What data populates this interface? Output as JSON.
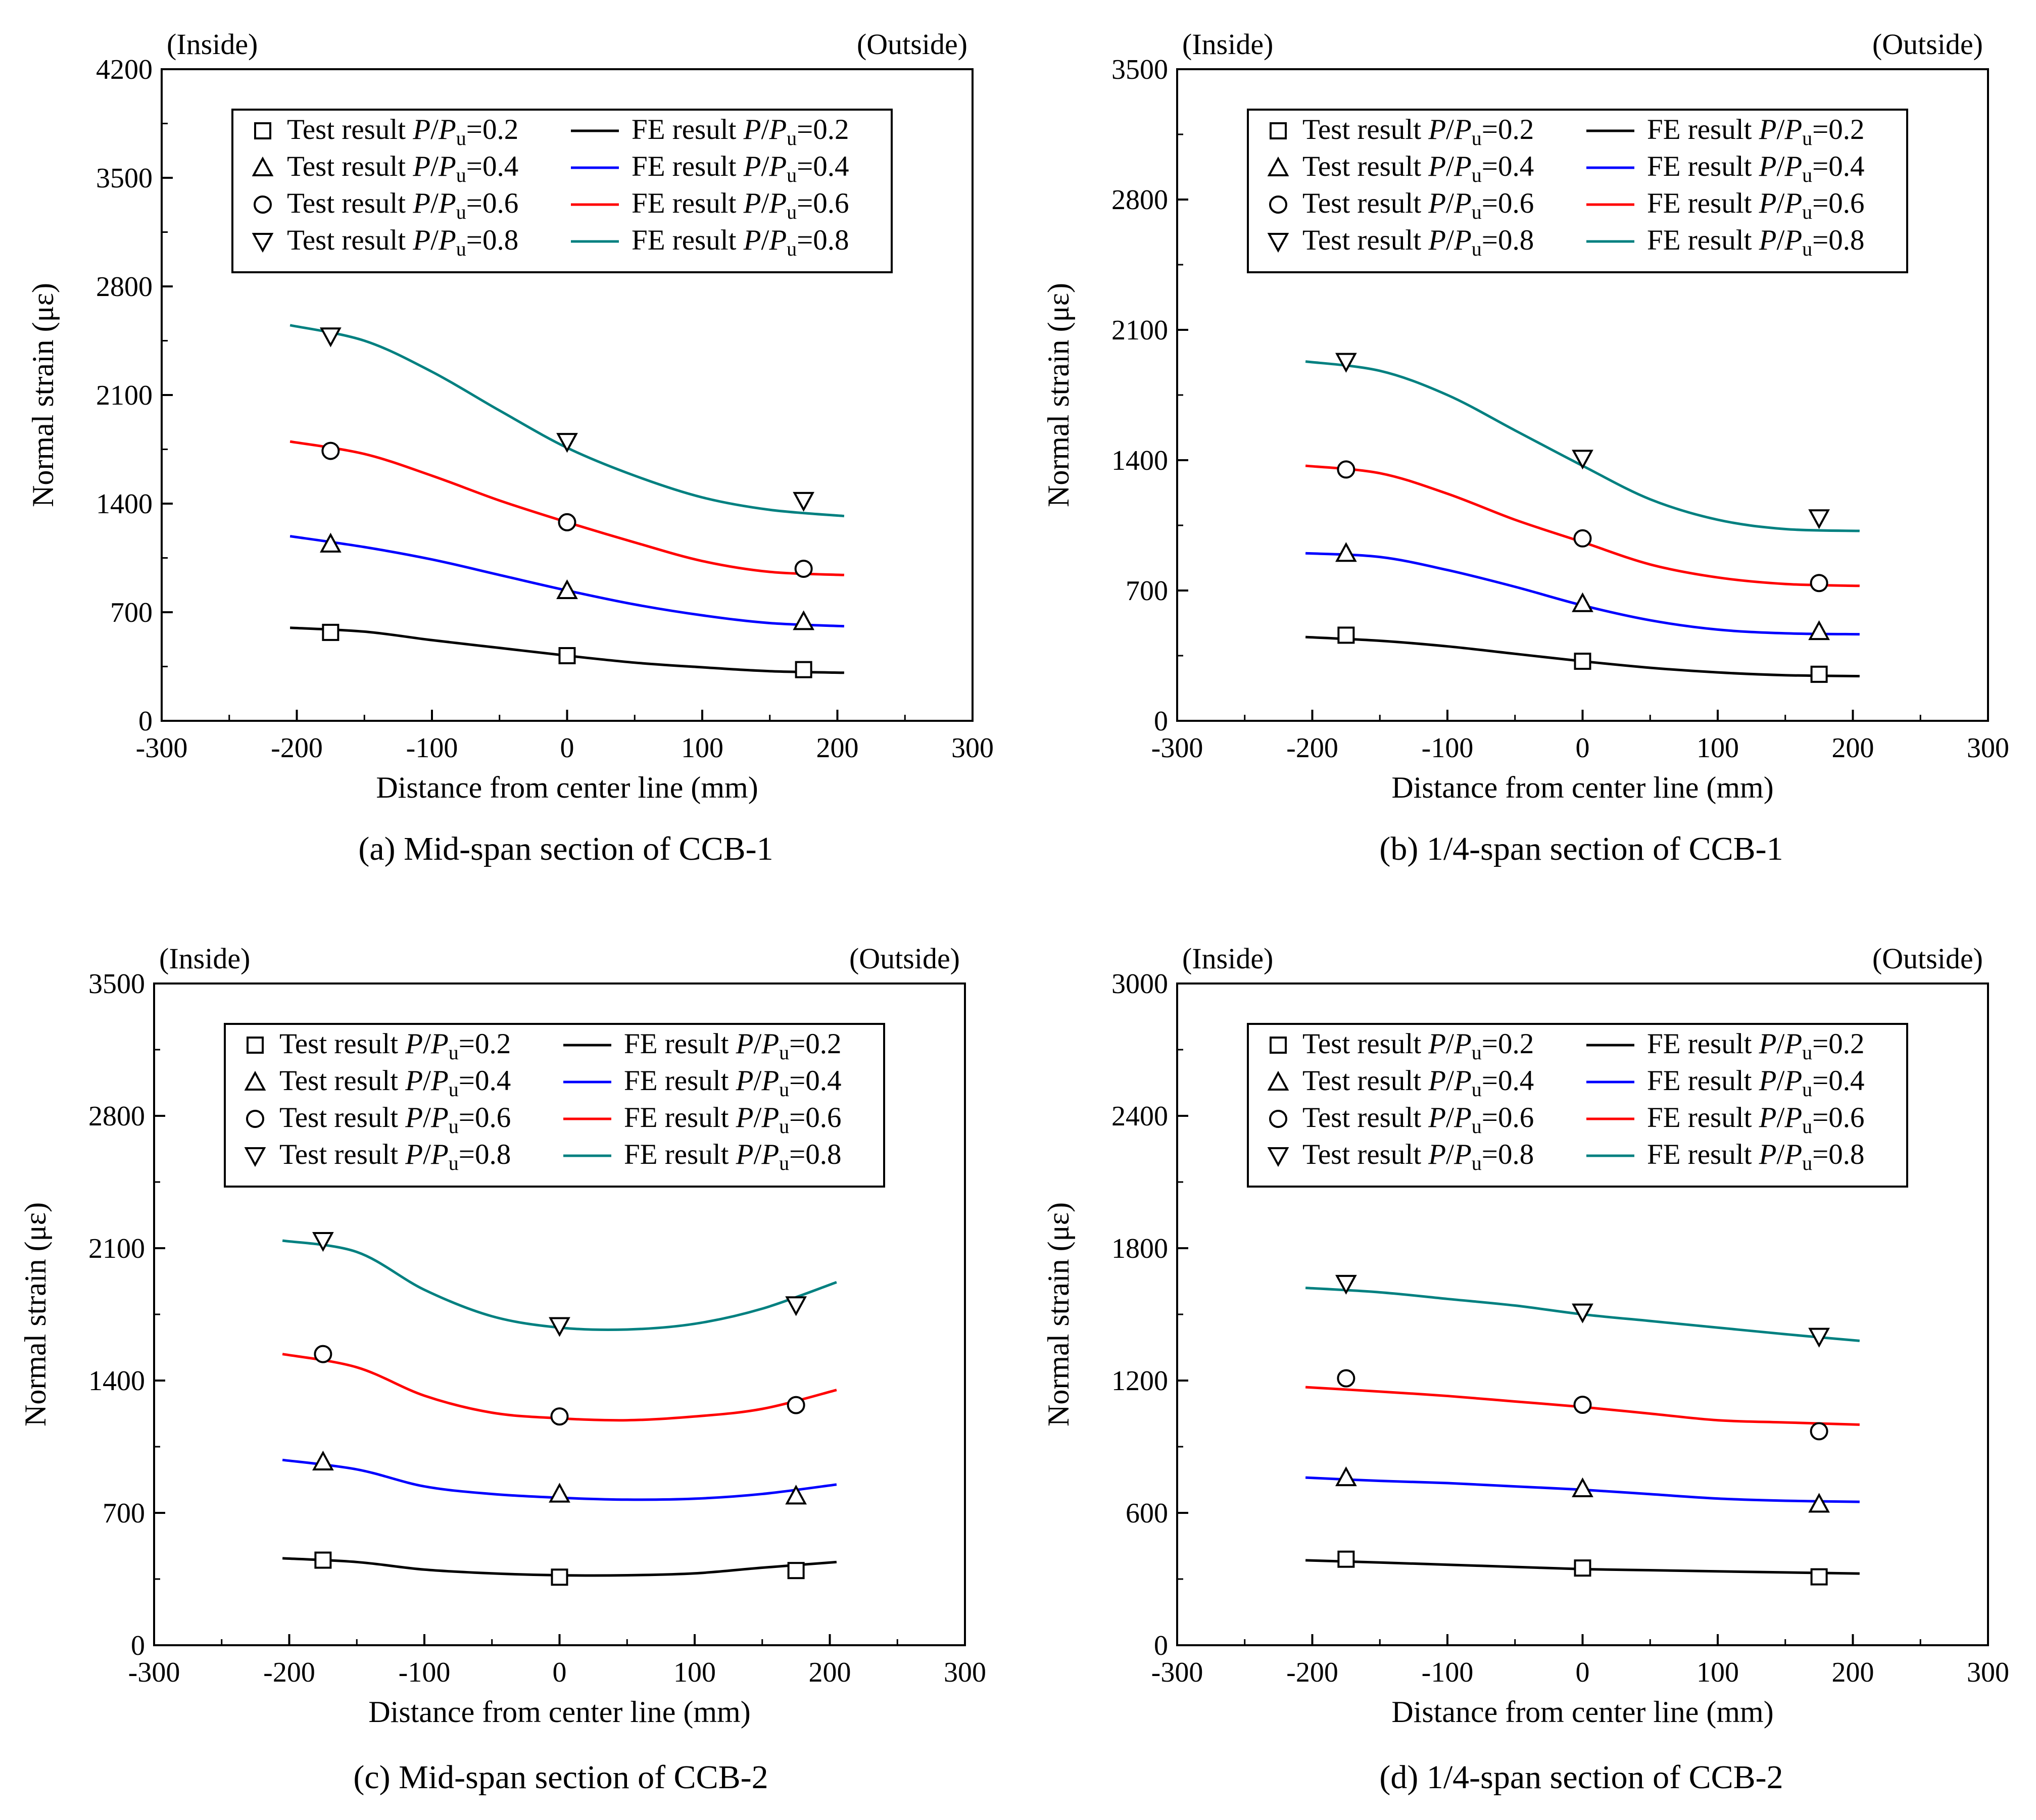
{
  "chart_data": [
    {
      "type": "line",
      "caption": "(a) Mid-span section of CCB-1",
      "xlabel": "Distance from center line (mm)",
      "ylabel": "Normal strain (με)",
      "side_labels": {
        "left": "(Inside)",
        "right": "(Outside)"
      },
      "xlim": [
        -300,
        300
      ],
      "ylim": [
        0,
        4200
      ],
      "xticks": [
        -300,
        -200,
        -100,
        0,
        100,
        200,
        300
      ],
      "yticks": [
        0,
        700,
        1400,
        2100,
        2800,
        3500,
        4200
      ],
      "legend_position": "top",
      "test_series": [
        {
          "name": "Test result P/Pu=0.2",
          "ratio": "0.2",
          "marker": "square",
          "x": [
            -175,
            0,
            175
          ],
          "y": [
            570,
            420,
            330
          ]
        },
        {
          "name": "Test result P/Pu=0.4",
          "ratio": "0.4",
          "marker": "triangle-up",
          "x": [
            -175,
            0,
            175
          ],
          "y": [
            1140,
            840,
            640
          ]
        },
        {
          "name": "Test result P/Pu=0.6",
          "ratio": "0.6",
          "marker": "circle",
          "x": [
            -175,
            0,
            175
          ],
          "y": [
            1740,
            1280,
            980
          ]
        },
        {
          "name": "Test result P/Pu=0.8",
          "ratio": "0.8",
          "marker": "triangle-down",
          "x": [
            -175,
            0,
            175
          ],
          "y": [
            2480,
            1800,
            1420
          ]
        }
      ],
      "fe_series": [
        {
          "name": "FE result P/Pu=0.2",
          "ratio": "0.2",
          "color": "#000000",
          "x": [
            -205,
            -150,
            -100,
            -50,
            0,
            50,
            100,
            150,
            205
          ],
          "y": [
            600,
            575,
            520,
            470,
            420,
            375,
            345,
            320,
            310
          ]
        },
        {
          "name": "FE result P/Pu=0.4",
          "ratio": "0.4",
          "color": "#0000ff",
          "x": [
            -205,
            -150,
            -100,
            -50,
            0,
            50,
            100,
            150,
            205
          ],
          "y": [
            1190,
            1120,
            1040,
            940,
            840,
            750,
            680,
            630,
            610
          ]
        },
        {
          "name": "FE result P/Pu=0.6",
          "ratio": "0.6",
          "color": "#ff0000",
          "x": [
            -205,
            -150,
            -100,
            -50,
            0,
            50,
            100,
            150,
            205
          ],
          "y": [
            1800,
            1720,
            1580,
            1420,
            1280,
            1150,
            1030,
            960,
            940
          ]
        },
        {
          "name": "FE result P/Pu=0.8",
          "ratio": "0.8",
          "color": "#008080",
          "x": [
            -205,
            -150,
            -100,
            -50,
            0,
            50,
            100,
            150,
            205
          ],
          "y": [
            2550,
            2450,
            2250,
            2000,
            1760,
            1580,
            1440,
            1360,
            1320
          ]
        }
      ]
    },
    {
      "type": "line",
      "caption": "(b) 1/4-span section of CCB-1",
      "xlabel": "Distance from center line (mm)",
      "ylabel": "Normal strain (με)",
      "side_labels": {
        "left": "(Inside)",
        "right": "(Outside)"
      },
      "xlim": [
        -300,
        300
      ],
      "ylim": [
        0,
        3500
      ],
      "xticks": [
        -300,
        -200,
        -100,
        0,
        100,
        200,
        300
      ],
      "yticks": [
        0,
        700,
        1400,
        2100,
        2800,
        3500
      ],
      "legend_position": "top",
      "test_series": [
        {
          "name": "Test result P/Pu=0.2",
          "ratio": "0.2",
          "marker": "square",
          "x": [
            -175,
            0,
            175
          ],
          "y": [
            460,
            320,
            250
          ]
        },
        {
          "name": "Test result P/Pu=0.4",
          "ratio": "0.4",
          "marker": "triangle-up",
          "x": [
            -175,
            0,
            175
          ],
          "y": [
            900,
            630,
            480
          ]
        },
        {
          "name": "Test result P/Pu=0.6",
          "ratio": "0.6",
          "marker": "circle",
          "x": [
            -175,
            0,
            175
          ],
          "y": [
            1350,
            980,
            740
          ]
        },
        {
          "name": "Test result P/Pu=0.8",
          "ratio": "0.8",
          "marker": "triangle-down",
          "x": [
            -175,
            0,
            175
          ],
          "y": [
            1930,
            1410,
            1090
          ]
        }
      ],
      "fe_series": [
        {
          "name": "FE result P/Pu=0.2",
          "ratio": "0.2",
          "color": "#000000",
          "x": [
            -205,
            -150,
            -100,
            -50,
            0,
            50,
            100,
            150,
            205
          ],
          "y": [
            450,
            430,
            400,
            360,
            320,
            285,
            260,
            245,
            240
          ]
        },
        {
          "name": "FE result P/Pu=0.4",
          "ratio": "0.4",
          "color": "#0000ff",
          "x": [
            -205,
            -150,
            -100,
            -50,
            0,
            50,
            100,
            150,
            205
          ],
          "y": [
            900,
            880,
            810,
            720,
            620,
            540,
            490,
            470,
            465
          ]
        },
        {
          "name": "FE result P/Pu=0.6",
          "ratio": "0.6",
          "color": "#ff0000",
          "x": [
            -205,
            -150,
            -100,
            -50,
            0,
            50,
            100,
            150,
            205
          ],
          "y": [
            1370,
            1330,
            1220,
            1080,
            960,
            840,
            770,
            735,
            725
          ]
        },
        {
          "name": "FE result P/Pu=0.8",
          "ratio": "0.8",
          "color": "#008080",
          "x": [
            -205,
            -150,
            -100,
            -50,
            0,
            50,
            100,
            150,
            205
          ],
          "y": [
            1930,
            1880,
            1750,
            1560,
            1370,
            1190,
            1080,
            1030,
            1020
          ]
        }
      ]
    },
    {
      "type": "line",
      "caption": "(c) Mid-span section of CCB-2",
      "xlabel": "Distance from center line (mm)",
      "ylabel": "Normal strain (με)",
      "side_labels": {
        "left": "(Inside)",
        "right": "(Outside)"
      },
      "xlim": [
        -300,
        300
      ],
      "ylim": [
        0,
        3500
      ],
      "xticks": [
        -300,
        -200,
        -100,
        0,
        100,
        200,
        300
      ],
      "yticks": [
        0,
        700,
        1400,
        2100,
        2800,
        3500
      ],
      "legend_position": "top",
      "test_series": [
        {
          "name": "Test result P/Pu=0.2",
          "ratio": "0.2",
          "marker": "square",
          "x": [
            -175,
            0,
            175
          ],
          "y": [
            450,
            360,
            395
          ]
        },
        {
          "name": "Test result P/Pu=0.4",
          "ratio": "0.4",
          "marker": "triangle-up",
          "x": [
            -175,
            0,
            175
          ],
          "y": [
            970,
            800,
            790
          ]
        },
        {
          "name": "Test result P/Pu=0.6",
          "ratio": "0.6",
          "marker": "circle",
          "x": [
            -175,
            0,
            175
          ],
          "y": [
            1540,
            1210,
            1270
          ]
        },
        {
          "name": "Test result P/Pu=0.8",
          "ratio": "0.8",
          "marker": "triangle-down",
          "x": [
            -175,
            0,
            175
          ],
          "y": [
            2140,
            1690,
            1800
          ]
        }
      ],
      "fe_series": [
        {
          "name": "FE result P/Pu=0.2",
          "ratio": "0.2",
          "color": "#000000",
          "x": [
            -205,
            -150,
            -100,
            -50,
            0,
            50,
            100,
            150,
            205
          ],
          "y": [
            460,
            440,
            400,
            380,
            370,
            370,
            380,
            410,
            440
          ]
        },
        {
          "name": "FE result P/Pu=0.4",
          "ratio": "0.4",
          "color": "#0000ff",
          "x": [
            -205,
            -150,
            -100,
            -50,
            0,
            50,
            100,
            150,
            205
          ],
          "y": [
            980,
            930,
            840,
            800,
            780,
            770,
            775,
            800,
            850
          ]
        },
        {
          "name": "FE result P/Pu=0.6",
          "ratio": "0.6",
          "color": "#ff0000",
          "x": [
            -205,
            -150,
            -100,
            -50,
            0,
            50,
            100,
            150,
            205
          ],
          "y": [
            1540,
            1470,
            1320,
            1230,
            1200,
            1190,
            1210,
            1250,
            1350
          ]
        },
        {
          "name": "FE result P/Pu=0.8",
          "ratio": "0.8",
          "color": "#008080",
          "x": [
            -205,
            -150,
            -100,
            -50,
            0,
            50,
            100,
            150,
            205
          ],
          "y": [
            2140,
            2080,
            1880,
            1740,
            1680,
            1670,
            1700,
            1780,
            1920
          ]
        }
      ]
    },
    {
      "type": "line",
      "caption": "(d) 1/4-span section of CCB-2",
      "xlabel": "Distance from center line (mm)",
      "ylabel": "Normal strain (με)",
      "side_labels": {
        "left": "(Inside)",
        "right": "(Outside)"
      },
      "xlim": [
        -300,
        300
      ],
      "ylim": [
        0,
        3000
      ],
      "xticks": [
        -300,
        -200,
        -100,
        0,
        100,
        200,
        300
      ],
      "yticks": [
        0,
        600,
        1200,
        1800,
        2400,
        3000
      ],
      "legend_position": "top",
      "test_series": [
        {
          "name": "Test result P/Pu=0.2",
          "ratio": "0.2",
          "marker": "square",
          "x": [
            -175,
            0,
            175
          ],
          "y": [
            390,
            350,
            310
          ]
        },
        {
          "name": "Test result P/Pu=0.4",
          "ratio": "0.4",
          "marker": "triangle-up",
          "x": [
            -175,
            0,
            175
          ],
          "y": [
            760,
            710,
            640
          ]
        },
        {
          "name": "Test result P/Pu=0.6",
          "ratio": "0.6",
          "marker": "circle",
          "x": [
            -175,
            0,
            175
          ],
          "y": [
            1210,
            1090,
            970
          ]
        },
        {
          "name": "Test result P/Pu=0.8",
          "ratio": "0.8",
          "marker": "triangle-down",
          "x": [
            -175,
            0,
            175
          ],
          "y": [
            1640,
            1510,
            1400
          ]
        }
      ],
      "fe_series": [
        {
          "name": "FE result P/Pu=0.2",
          "ratio": "0.2",
          "color": "#000000",
          "x": [
            -205,
            -150,
            -100,
            -50,
            0,
            50,
            100,
            150,
            205
          ],
          "y": [
            385,
            375,
            365,
            355,
            345,
            340,
            335,
            330,
            325
          ]
        },
        {
          "name": "FE result P/Pu=0.4",
          "ratio": "0.4",
          "color": "#0000ff",
          "x": [
            -205,
            -150,
            -100,
            -50,
            0,
            50,
            100,
            150,
            205
          ],
          "y": [
            760,
            745,
            735,
            720,
            705,
            685,
            665,
            655,
            650
          ]
        },
        {
          "name": "FE result P/Pu=0.6",
          "ratio": "0.6",
          "color": "#ff0000",
          "x": [
            -205,
            -150,
            -100,
            -50,
            0,
            50,
            100,
            150,
            205
          ],
          "y": [
            1170,
            1150,
            1130,
            1105,
            1080,
            1050,
            1020,
            1010,
            1000
          ]
        },
        {
          "name": "FE result P/Pu=0.8",
          "ratio": "0.8",
          "color": "#008080",
          "x": [
            -205,
            -150,
            -100,
            -50,
            0,
            50,
            100,
            150,
            205
          ],
          "y": [
            1620,
            1600,
            1570,
            1540,
            1500,
            1470,
            1440,
            1410,
            1380
          ]
        }
      ]
    }
  ]
}
